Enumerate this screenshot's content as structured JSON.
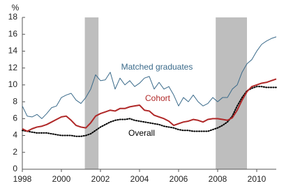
{
  "chart_data": {
    "type": "line",
    "y_label": "%",
    "xlim": [
      1998,
      2011
    ],
    "xticks": [
      1998,
      2000,
      2002,
      2004,
      2006,
      2008,
      2010
    ],
    "ylim": [
      0,
      18
    ],
    "yticks": [
      0,
      2,
      4,
      6,
      8,
      10,
      12,
      14,
      16,
      18
    ],
    "grid": false,
    "shaded_periods": [
      [
        2001.2,
        2001.9
      ],
      [
        2007.9,
        2009.5
      ]
    ],
    "shade_color": "#bebebe",
    "x": [
      1998,
      1998.25,
      1998.5,
      1998.75,
      1999,
      1999.25,
      1999.5,
      1999.75,
      2000,
      2000.25,
      2000.5,
      2000.75,
      2001,
      2001.25,
      2001.5,
      2001.75,
      2002,
      2002.25,
      2002.5,
      2002.75,
      2003,
      2003.25,
      2003.5,
      2003.75,
      2004,
      2004.25,
      2004.5,
      2004.75,
      2005,
      2005.25,
      2005.5,
      2005.75,
      2006,
      2006.25,
      2006.5,
      2006.75,
      2007,
      2007.25,
      2007.5,
      2007.75,
      2008,
      2008.25,
      2008.5,
      2008.75,
      2009,
      2009.25,
      2009.5,
      2009.75,
      2010,
      2010.25,
      2010.5,
      2010.75,
      2011
    ],
    "series": [
      {
        "name": "Matched graduates",
        "color": "#3a6a8a",
        "style": "solid",
        "values": [
          7.5,
          6.3,
          6.2,
          6.5,
          6.0,
          6.6,
          7.3,
          7.5,
          8.5,
          8.8,
          9.0,
          8.2,
          7.8,
          8.5,
          9.5,
          11.2,
          10.5,
          10.6,
          11.5,
          9.5,
          10.8,
          10.0,
          10.5,
          9.8,
          10.2,
          10.8,
          11.0,
          9.5,
          10.3,
          9.5,
          9.8,
          8.8,
          7.5,
          8.5,
          8.0,
          8.8,
          8.0,
          7.5,
          7.8,
          8.5,
          8.0,
          8.5,
          8.5,
          9.5,
          10.0,
          11.5,
          12.5,
          13.0,
          14.0,
          14.8,
          15.2,
          15.5,
          15.7
        ]
      },
      {
        "name": "Cohort",
        "color": "#b02828",
        "style": "solid",
        "values": [
          4.8,
          4.5,
          4.8,
          5.0,
          5.1,
          5.3,
          5.6,
          5.9,
          6.2,
          6.3,
          5.8,
          5.2,
          5.0,
          4.9,
          5.5,
          6.3,
          6.6,
          6.8,
          7.0,
          6.9,
          7.2,
          7.2,
          7.4,
          7.5,
          7.6,
          7.0,
          6.9,
          6.4,
          6.2,
          6.0,
          5.7,
          5.2,
          5.4,
          5.6,
          5.7,
          5.9,
          5.8,
          5.6,
          5.9,
          6.0,
          6.0,
          5.9,
          5.8,
          6.1,
          7.0,
          8.2,
          9.2,
          9.8,
          10.0,
          10.2,
          10.3,
          10.5,
          10.7
        ]
      },
      {
        "name": "Overall",
        "color": "#000000",
        "style": "dotted",
        "values": [
          4.6,
          4.5,
          4.4,
          4.3,
          4.3,
          4.3,
          4.2,
          4.1,
          4.0,
          4.0,
          4.0,
          3.9,
          3.9,
          4.0,
          4.2,
          4.6,
          5.0,
          5.3,
          5.6,
          5.8,
          5.9,
          5.9,
          6.0,
          5.8,
          5.7,
          5.6,
          5.5,
          5.4,
          5.3,
          5.1,
          5.0,
          4.9,
          4.7,
          4.6,
          4.6,
          4.5,
          4.5,
          4.5,
          4.5,
          4.7,
          4.9,
          5.2,
          5.6,
          6.3,
          7.5,
          8.5,
          9.3,
          9.6,
          9.8,
          9.8,
          9.7,
          9.7,
          9.7
        ]
      }
    ]
  }
}
